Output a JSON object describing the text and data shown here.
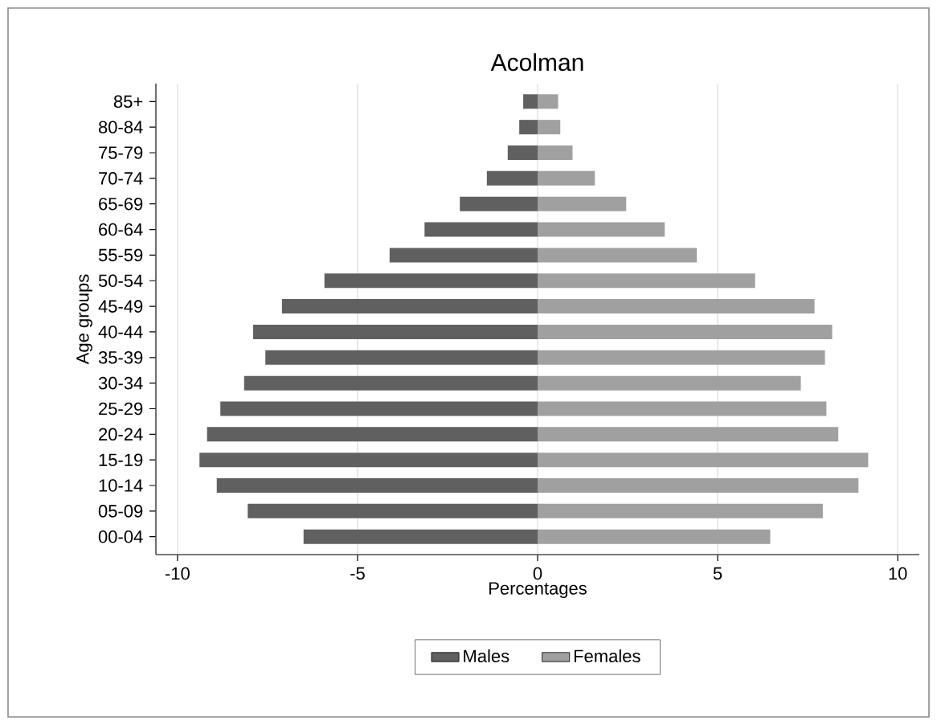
{
  "chart_data": {
    "type": "bar",
    "orientation": "horizontal",
    "title": "Acolman",
    "xlabel": "Percentages",
    "ylabel": "Age groups",
    "categories": [
      "85+",
      "80-84",
      "75-79",
      "70-74",
      "65-69",
      "60-64",
      "55-59",
      "50-54",
      "45-49",
      "40-44",
      "35-39",
      "30-34",
      "25-29",
      "20-24",
      "15-19",
      "10-14",
      "05-09",
      "00-04"
    ],
    "series": [
      {
        "name": "Males",
        "color": "#606060",
        "values": [
          -0.4,
          -0.51,
          -0.83,
          -1.41,
          -2.16,
          -3.14,
          -4.11,
          -5.92,
          -7.1,
          -7.9,
          -7.56,
          -8.15,
          -8.81,
          -9.18,
          -9.39,
          -8.91,
          -8.05,
          -6.5
        ]
      },
      {
        "name": "Females",
        "color": "#a0a0a0",
        "values": [
          0.57,
          0.63,
          0.97,
          1.59,
          2.46,
          3.53,
          4.42,
          6.04,
          7.69,
          8.18,
          7.98,
          7.31,
          8.02,
          8.35,
          9.18,
          8.91,
          7.92,
          6.46
        ]
      }
    ],
    "xlim": [
      -10.6,
      10.6
    ],
    "xticks": [
      -10,
      -5,
      0,
      5,
      10
    ],
    "grid": "x",
    "legend": "bottom",
    "stacked": true
  }
}
